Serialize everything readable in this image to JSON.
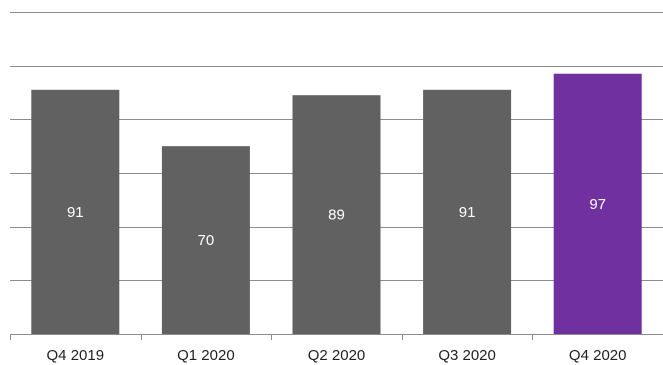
{
  "chart_data": {
    "type": "bar",
    "categories": [
      "Q4 2019",
      "Q1 2020",
      "Q2 2020",
      "Q3 2020",
      "Q4 2020"
    ],
    "values": [
      91,
      70,
      89,
      91,
      97
    ],
    "title": "",
    "xlabel": "",
    "ylabel": "",
    "ylim": [
      0,
      120
    ],
    "gridlines": true,
    "y_tick_labels_shown": false,
    "legend": "none",
    "colors": {
      "default_bar": "#616161",
      "highlight_bar": "#7030a0",
      "data_label": "#ffffff",
      "gridline": "#8c8c8c",
      "tick_label": "#222222"
    },
    "highlight_index": 4
  }
}
